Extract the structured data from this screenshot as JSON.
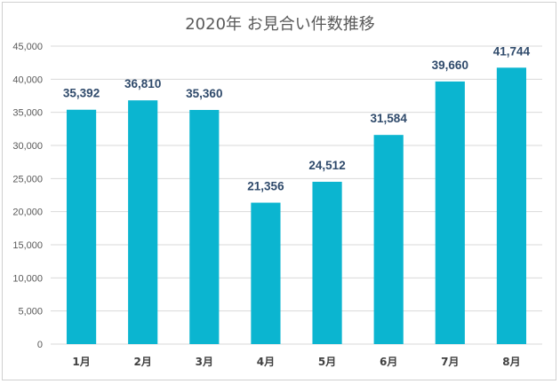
{
  "chart_data": {
    "type": "bar",
    "title": "2020年 お見合い件数推移",
    "xlabel": "",
    "ylabel": "",
    "categories": [
      "1月",
      "2月",
      "3月",
      "4月",
      "5月",
      "6月",
      "7月",
      "8月"
    ],
    "values": [
      35392,
      36810,
      35360,
      21356,
      24512,
      31584,
      39660,
      41744
    ],
    "data_labels": [
      "35,392",
      "36,810",
      "35,360",
      "21,356",
      "24,512",
      "31,584",
      "39,660",
      "41,744"
    ],
    "ylim": [
      0,
      45000
    ],
    "yticks": [
      0,
      5000,
      10000,
      15000,
      20000,
      25000,
      30000,
      35000,
      40000,
      45000
    ],
    "ytick_labels": [
      "0",
      "5,000",
      "10,000",
      "15,000",
      "20,000",
      "25,000",
      "30,000",
      "35,000",
      "40,000",
      "45,000"
    ],
    "grid": true,
    "legend": "none",
    "colors": {
      "bar": "#0bb5d0",
      "grid": "#d9d9d9",
      "data_label": "#2f4a6b"
    }
  }
}
